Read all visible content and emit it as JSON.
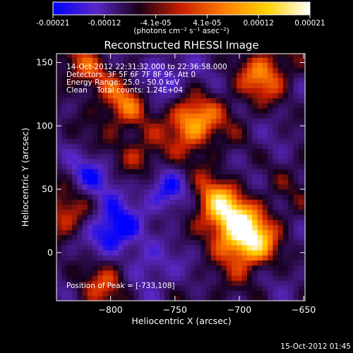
{
  "colorbar": {
    "tick_labels": [
      "-0.00021",
      "-0.00012",
      "-4.1e-05",
      "4.1e-05",
      "0.00012",
      "0.00021"
    ],
    "unit_label": "(photons cm⁻² s⁻¹ asec⁻²)",
    "range": [
      -0.00021,
      0.00021
    ],
    "colors": [
      "#0000ff",
      "#5a28c8",
      "#1a0018",
      "#c81e00",
      "#ff7d00",
      "#ffd200",
      "#ffffff"
    ]
  },
  "chart_data": {
    "type": "heatmap",
    "title": "Reconstructed RHESSI Image",
    "xlabel": "Heliocentric X (arcsec)",
    "ylabel": "Heliocentric Y (arcsec)",
    "xlim": [
      -842,
      -649
    ],
    "ylim": [
      -38,
      157
    ],
    "x_ticks": [
      -800,
      -750,
      -700,
      -650
    ],
    "y_ticks": [
      0,
      50,
      100,
      150
    ],
    "annotations": {
      "time_range": "14-Oct-2012 22:31:32.000 to 22:36:58.000",
      "detectors": "Detectors: 3F 5F 6F 7F 8F 9F, Att 0",
      "energy_range": "Energy Range: 25.0 - 50.0 keV",
      "clean_counts": "Clean    Total counts: 1.24E+04",
      "peak": "Position of Peak = [-733,108]"
    },
    "peak_position": [
      -733,
      108
    ],
    "total_counts": 12400,
    "colormap": "blue-purple-black-red-orange-yellow-white",
    "bright_regions": [
      {
        "x": -738,
        "y": 104,
        "level": 0.95
      },
      {
        "x": -692,
        "y": 8,
        "level": 0.95
      },
      {
        "x": -718,
        "y": 40,
        "level": 0.82
      },
      {
        "x": -705,
        "y": 24,
        "level": 0.8
      },
      {
        "x": -820,
        "y": 145,
        "level": 0.55
      },
      {
        "x": -790,
        "y": 118,
        "level": 0.5
      },
      {
        "x": -832,
        "y": 30,
        "level": 0.55
      },
      {
        "x": -775,
        "y": 75,
        "level": 0.55
      },
      {
        "x": -800,
        "y": -20,
        "level": 0.45
      },
      {
        "x": -680,
        "y": 140,
        "level": 0.6
      }
    ],
    "dim_regions": [
      {
        "x": -797,
        "y": 18,
        "level": -0.9
      },
      {
        "x": -757,
        "y": 48,
        "level": -0.75
      },
      {
        "x": -818,
        "y": 62,
        "level": -0.6
      },
      {
        "x": -760,
        "y": 140,
        "level": -0.55
      },
      {
        "x": -775,
        "y": -10,
        "level": -0.5
      }
    ]
  },
  "footer_timestamp": "15-Oct-2012 01:45"
}
